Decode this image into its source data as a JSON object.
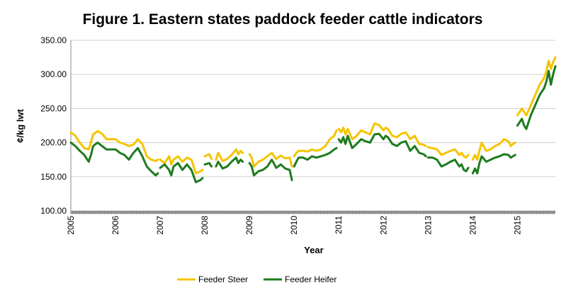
{
  "chart_data": {
    "type": "line",
    "title": "Figure 1. Eastern states paddock feeder cattle indicators",
    "xlabel": "Year",
    "ylabel": "¢/kg lwt",
    "ylim": [
      100,
      350
    ],
    "xlim": [
      2005.0,
      2015.85
    ],
    "y_ticks": [
      "100.00",
      "150.00",
      "200.00",
      "250.00",
      "300.00",
      "350.00"
    ],
    "x_ticks": [
      "2005",
      "2006",
      "2007",
      "2008",
      "2009",
      "2010",
      "2011",
      "2012",
      "2013",
      "2014",
      "2015"
    ],
    "grid": "horizontal",
    "legend_position": "bottom",
    "series": [
      {
        "name": "Feeder Steer",
        "color": "#f5c400",
        "x": [
          2005.0,
          2005.1,
          2005.2,
          2005.3,
          2005.4,
          2005.45,
          2005.5,
          2005.6,
          2005.7,
          2005.8,
          2005.9,
          2006.0,
          2006.1,
          2006.2,
          2006.3,
          2006.4,
          2006.5,
          2006.6,
          2006.7,
          2006.8,
          2006.9,
          2006.95,
          null,
          2007.0,
          2007.1,
          2007.2,
          2007.25,
          2007.3,
          2007.4,
          2007.5,
          2007.6,
          2007.7,
          2007.8,
          2007.9,
          2007.95,
          null,
          2008.0,
          2008.1,
          2008.15,
          null,
          2008.25,
          2008.3,
          2008.4,
          2008.5,
          2008.6,
          2008.7,
          2008.75,
          2008.8,
          2008.85,
          null,
          2009.0,
          2009.05,
          2009.1,
          2009.2,
          2009.3,
          2009.4,
          2009.5,
          2009.6,
          2009.7,
          2009.8,
          2009.9,
          2009.95,
          null,
          2010.0,
          2010.05,
          2010.1,
          2010.2,
          2010.3,
          2010.4,
          2010.5,
          2010.6,
          2010.7,
          2010.8,
          2010.9,
          2010.95,
          null,
          2011.0,
          2011.05,
          2011.1,
          2011.15,
          2011.2,
          2011.3,
          2011.4,
          2011.5,
          2011.6,
          2011.7,
          2011.8,
          2011.9,
          2012.0,
          2012.05,
          2012.1,
          2012.2,
          2012.3,
          2012.4,
          2012.5,
          2012.6,
          2012.7,
          2012.8,
          2012.9,
          2012.95,
          null,
          2013.0,
          2013.1,
          2013.2,
          2013.3,
          2013.4,
          2013.5,
          2013.6,
          2013.7,
          2013.75,
          2013.8,
          2013.85,
          2013.9,
          null,
          2014.0,
          2014.05,
          2014.1,
          2014.15,
          2014.2,
          2014.3,
          2014.4,
          2014.5,
          2014.6,
          2014.7,
          2014.8,
          2014.85,
          2014.9,
          2014.95,
          null,
          2015.0,
          2015.05,
          2015.1,
          2015.15,
          2015.2,
          2015.3,
          2015.4,
          2015.5,
          2015.6,
          2015.65,
          2015.7,
          2015.75,
          2015.8,
          2015.85
        ],
        "values": [
          215,
          210,
          200,
          192,
          190,
          200,
          212,
          217,
          213,
          205,
          205,
          205,
          200,
          198,
          195,
          197,
          205,
          198,
          180,
          175,
          173,
          175,
          null,
          175,
          170,
          180,
          168,
          175,
          180,
          172,
          178,
          175,
          155,
          158,
          160,
          null,
          180,
          183,
          176,
          null,
          175,
          185,
          173,
          176,
          182,
          190,
          183,
          188,
          185,
          null,
          183,
          178,
          165,
          172,
          175,
          180,
          185,
          176,
          181,
          177,
          178,
          165,
          null,
          180,
          185,
          188,
          188,
          187,
          190,
          188,
          190,
          195,
          205,
          210,
          218,
          null,
          220,
          215,
          222,
          212,
          220,
          205,
          210,
          218,
          215,
          212,
          228,
          226,
          218,
          222,
          220,
          210,
          208,
          213,
          215,
          205,
          210,
          198,
          197,
          195,
          null,
          193,
          192,
          190,
          182,
          185,
          188,
          190,
          182,
          185,
          180,
          178,
          182,
          null,
          175,
          182,
          175,
          188,
          200,
          188,
          190,
          195,
          198,
          205,
          202,
          195,
          198,
          200,
          null,
          240,
          245,
          250,
          245,
          240,
          255,
          270,
          285,
          295,
          305,
          320,
          308,
          318,
          325
        ]
      },
      {
        "name": "Feeder Heifer",
        "color": "#1e7b1e",
        "x": [
          2005.0,
          2005.1,
          2005.2,
          2005.3,
          2005.4,
          2005.45,
          2005.5,
          2005.6,
          2005.7,
          2005.8,
          2005.9,
          2006.0,
          2006.1,
          2006.2,
          2006.3,
          2006.4,
          2006.5,
          2006.6,
          2006.7,
          2006.8,
          2006.9,
          2006.95,
          null,
          2007.0,
          2007.1,
          2007.2,
          2007.25,
          2007.3,
          2007.4,
          2007.5,
          2007.6,
          2007.7,
          2007.8,
          2007.9,
          2007.95,
          null,
          2008.0,
          2008.1,
          2008.15,
          null,
          2008.25,
          2008.3,
          2008.4,
          2008.5,
          2008.6,
          2008.7,
          2008.75,
          2008.8,
          2008.85,
          null,
          2009.0,
          2009.05,
          2009.1,
          2009.2,
          2009.3,
          2009.4,
          2009.5,
          2009.6,
          2009.7,
          2009.8,
          2009.9,
          2009.95,
          null,
          2010.0,
          2010.05,
          2010.1,
          2010.2,
          2010.3,
          2010.4,
          2010.5,
          2010.6,
          2010.7,
          2010.8,
          2010.9,
          2010.95,
          null,
          2011.0,
          2011.05,
          2011.1,
          2011.15,
          2011.2,
          2011.3,
          2011.4,
          2011.5,
          2011.6,
          2011.7,
          2011.8,
          2011.9,
          2012.0,
          2012.05,
          2012.1,
          2012.2,
          2012.3,
          2012.4,
          2012.5,
          2012.6,
          2012.7,
          2012.8,
          2012.9,
          2012.95,
          null,
          2013.0,
          2013.1,
          2013.2,
          2013.3,
          2013.4,
          2013.5,
          2013.6,
          2013.7,
          2013.75,
          2013.8,
          2013.85,
          2013.9,
          null,
          2014.0,
          2014.05,
          2014.1,
          2014.15,
          2014.2,
          2014.3,
          2014.4,
          2014.5,
          2014.6,
          2014.7,
          2014.8,
          2014.85,
          2014.9,
          2014.95,
          null,
          2015.0,
          2015.05,
          2015.1,
          2015.15,
          2015.2,
          2015.3,
          2015.4,
          2015.5,
          2015.6,
          2015.65,
          2015.7,
          2015.75,
          2015.8,
          2015.85
        ],
        "values": [
          200,
          195,
          188,
          182,
          172,
          182,
          195,
          200,
          195,
          190,
          190,
          190,
          185,
          182,
          175,
          185,
          192,
          180,
          165,
          158,
          152,
          155,
          null,
          163,
          168,
          160,
          152,
          165,
          170,
          160,
          168,
          160,
          142,
          145,
          148,
          null,
          168,
          170,
          165,
          null,
          165,
          172,
          162,
          165,
          172,
          178,
          170,
          175,
          172,
          null,
          170,
          165,
          152,
          158,
          160,
          165,
          175,
          163,
          168,
          162,
          160,
          145,
          null,
          165,
          172,
          178,
          178,
          175,
          180,
          178,
          180,
          182,
          185,
          190,
          192,
          null,
          205,
          200,
          208,
          198,
          210,
          192,
          198,
          205,
          202,
          200,
          212,
          213,
          205,
          210,
          208,
          198,
          195,
          200,
          202,
          188,
          195,
          185,
          183,
          180,
          null,
          178,
          178,
          175,
          165,
          168,
          172,
          175,
          165,
          168,
          160,
          158,
          163,
          null,
          155,
          162,
          155,
          170,
          180,
          172,
          175,
          178,
          180,
          183,
          182,
          178,
          180,
          182,
          null,
          225,
          230,
          235,
          225,
          220,
          240,
          255,
          270,
          280,
          290,
          305,
          285,
          300,
          312
        ]
      }
    ]
  }
}
